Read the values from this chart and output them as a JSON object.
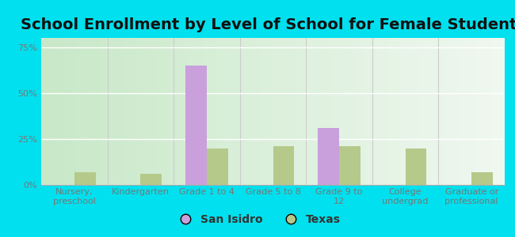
{
  "title": "School Enrollment by Level of School for Female Students",
  "categories": [
    "Nursery,\npreschool",
    "Kindergarten",
    "Grade 1 to 4",
    "Grade 5 to 8",
    "Grade 9 to\n12",
    "College\nundergrad",
    "Graduate or\nprofessional"
  ],
  "san_isidro": [
    0,
    0,
    65,
    0,
    31,
    0,
    0
  ],
  "texas": [
    7,
    6,
    20,
    21,
    21,
    20,
    7
  ],
  "bar_color_si": "#c9a0dc",
  "bar_color_tx": "#b5c98a",
  "background_outer": "#00e0ee",
  "background_inner_left": "#c8e8c8",
  "background_inner_right": "#f0f8f0",
  "ylim": [
    0,
    80
  ],
  "yticks": [
    0,
    25,
    50,
    75
  ],
  "ytick_labels": [
    "0%",
    "25%",
    "50%",
    "75%"
  ],
  "legend_si": "San Isidro",
  "legend_tx": "Texas",
  "title_fontsize": 14,
  "tick_fontsize": 8,
  "legend_fontsize": 10,
  "axis_color": "#777777",
  "grid_color": "#dddddd"
}
